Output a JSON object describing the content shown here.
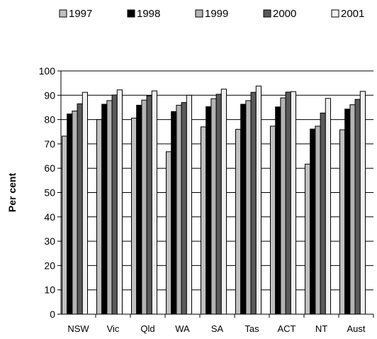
{
  "chart_data": {
    "type": "bar",
    "title": "",
    "xlabel": "",
    "ylabel": "Per cent",
    "ylim": [
      0,
      100
    ],
    "y_ticks": [
      0,
      10,
      20,
      30,
      40,
      50,
      60,
      70,
      80,
      90,
      100
    ],
    "grid": "horizontal",
    "legend_position": "top",
    "categories": [
      "NSW",
      "Vic",
      "Qld",
      "WA",
      "SA",
      "Tas",
      "ACT",
      "NT",
      "Aust"
    ],
    "series": [
      {
        "name": "1997",
        "color": "#c0c0c0",
        "values": [
          73.2,
          80.0,
          80.6,
          66.8,
          77.0,
          76.0,
          77.3,
          61.7,
          75.8
        ]
      },
      {
        "name": "1998",
        "color": "#000000",
        "values": [
          82.3,
          86.3,
          85.9,
          83.3,
          85.3,
          86.3,
          85.2,
          76.1,
          84.3
        ]
      },
      {
        "name": "1999",
        "color": "#b4b4b4",
        "values": [
          83.5,
          87.8,
          88.0,
          85.9,
          88.6,
          87.8,
          88.9,
          77.3,
          86.1
        ]
      },
      {
        "name": "2000",
        "color": "#5a5a5a",
        "values": [
          86.5,
          90.1,
          89.8,
          87.0,
          90.4,
          91.2,
          91.3,
          82.7,
          88.3
        ]
      },
      {
        "name": "2001",
        "color": "#f0f0f0",
        "values": [
          91.2,
          92.2,
          91.8,
          90.0,
          92.5,
          93.8,
          91.5,
          88.7,
          91.6
        ]
      }
    ]
  }
}
